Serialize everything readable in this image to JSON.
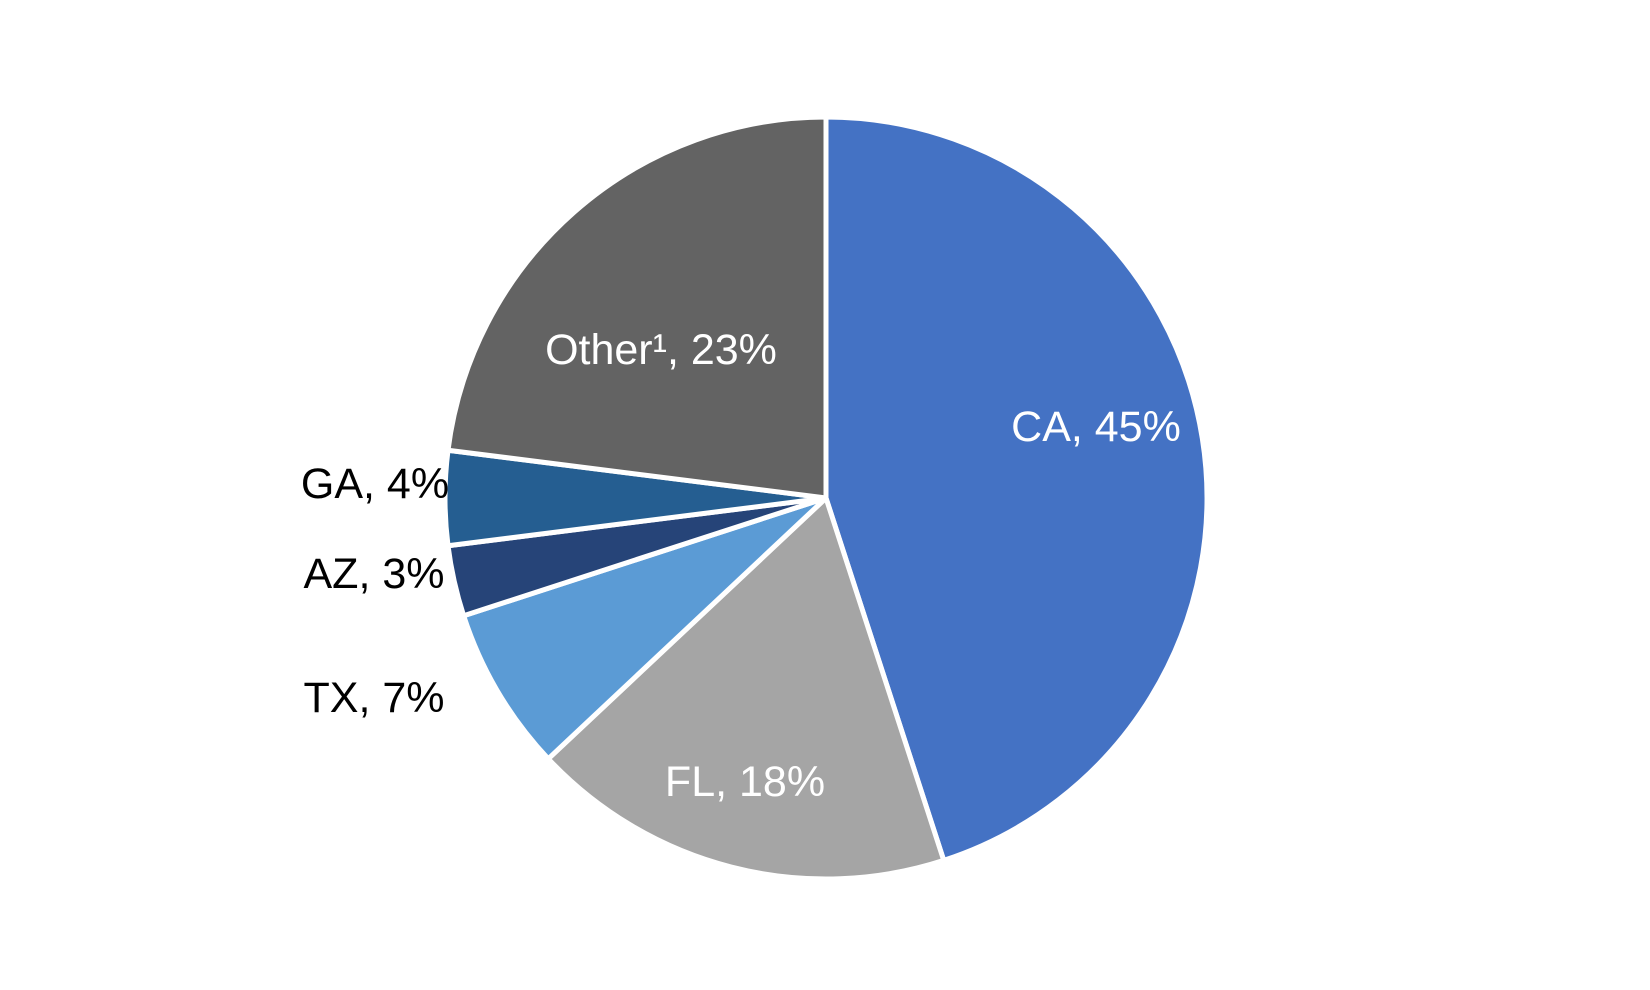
{
  "chart_data": {
    "type": "pie",
    "title": "",
    "unit": "%",
    "slices": [
      {
        "label": "CA",
        "value": 45,
        "text": "CA, 45%",
        "color": "#4472C4",
        "label_color": "#ffffff"
      },
      {
        "label": "FL",
        "value": 18,
        "text": "FL, 18%",
        "color": "#A5A5A5",
        "label_color": "#ffffff"
      },
      {
        "label": "TX",
        "value": 7,
        "text": "TX, 7%",
        "color": "#5B9BD5",
        "label_color": "#000000"
      },
      {
        "label": "AZ",
        "value": 3,
        "text": "AZ, 3%",
        "color": "#264478",
        "label_color": "#000000"
      },
      {
        "label": "GA",
        "value": 4,
        "text": "GA, 4%",
        "color": "#255E91",
        "label_color": "#000000"
      },
      {
        "label": "Other¹",
        "value": 23,
        "text": "Other¹, 23%",
        "color": "#636363",
        "label_color": "#ffffff"
      }
    ],
    "start_angle_deg": 0,
    "direction": "clockwise",
    "legend": "none",
    "slice_border_color": "#ffffff"
  }
}
